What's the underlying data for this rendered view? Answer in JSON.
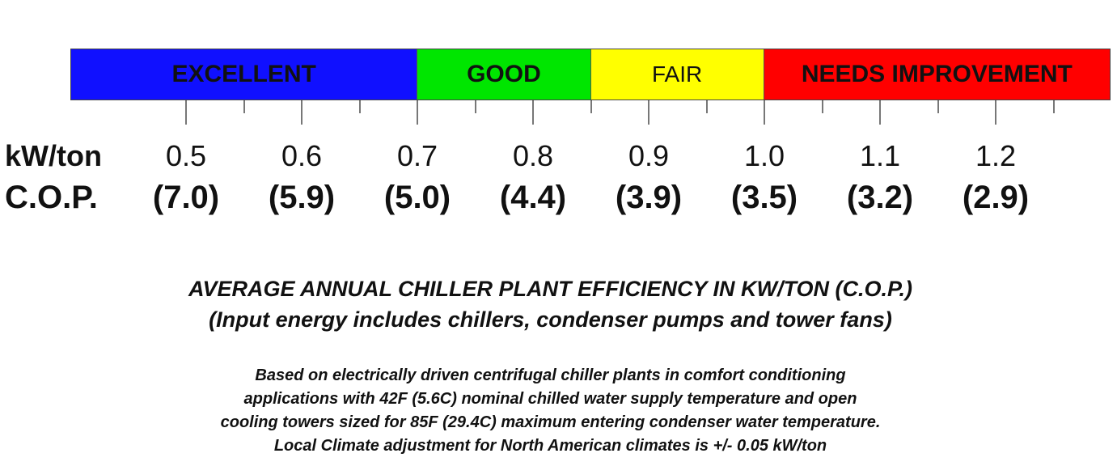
{
  "chart_data": {
    "type": "scale",
    "bands": [
      {
        "label": "EXCELLENT",
        "from": 0.4,
        "to": 0.7,
        "color": "#1010ff"
      },
      {
        "label": "GOOD",
        "from": 0.7,
        "to": 0.85,
        "color": "#00e600"
      },
      {
        "label": "FAIR",
        "from": 0.85,
        "to": 1.0,
        "color": "#ffff00"
      },
      {
        "label": "NEEDS IMPROVEMENT",
        "from": 1.0,
        "to": 1.3,
        "color": "#ff0000"
      }
    ],
    "kw_label": "kW/ton",
    "cop_label": "C.O.P.",
    "kw_values": [
      "0.5",
      "0.6",
      "0.7",
      "0.8",
      "0.9",
      "1.0",
      "1.1",
      "1.2"
    ],
    "cop_values": [
      "(7.0)",
      "(5.9)",
      "(5.0)",
      "(4.4)",
      "(3.9)",
      "(3.5)",
      "(3.2)",
      "(2.9)"
    ],
    "kw_numeric": [
      0.5,
      0.6,
      0.7,
      0.8,
      0.9,
      1.0,
      1.1,
      1.2
    ],
    "minor_ticks": [
      0.55,
      0.65,
      0.75,
      0.85,
      0.95,
      1.05,
      1.15,
      1.25
    ],
    "range": [
      0.4,
      1.3
    ]
  },
  "title": "AVERAGE ANNUAL CHILLER PLANT EFFICIENCY IN KW/TON (C.O.P.)",
  "subtitle": "(Input energy includes chillers, condenser pumps and tower fans)",
  "note_lines": [
    "Based on electrically driven centrifugal chiller plants in comfort conditioning",
    "applications with 42F (5.6C) nominal chilled water supply temperature and open",
    "cooling towers sized for 85F (29.4C) maximum entering condenser water temperature.",
    "Local Climate adjustment for North American climates is +/- 0.05 kW/ton"
  ]
}
